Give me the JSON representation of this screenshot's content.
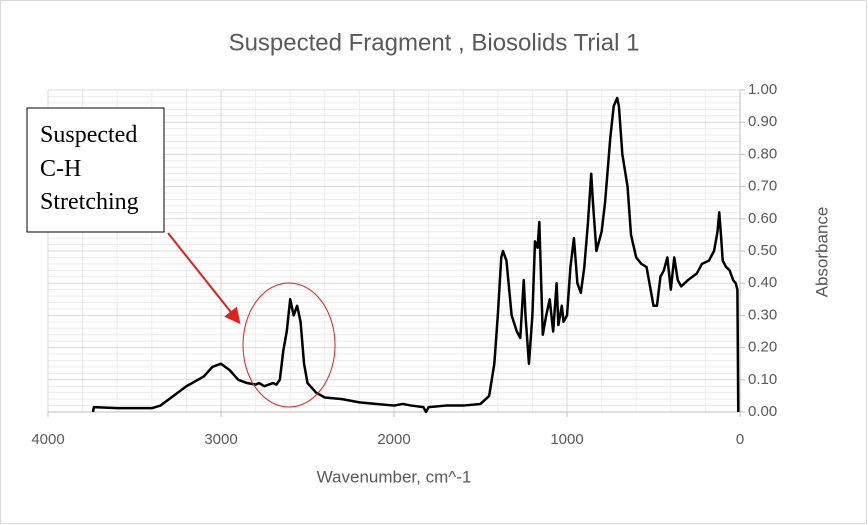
{
  "chart_data": {
    "type": "line",
    "title": "Suspected Fragment , Biosolids Trial 1",
    "x_label": "Wavenumber, cm^-1",
    "y_label": "Absorbance",
    "annotation": [
      "Suspected",
      "C-H",
      "Stretching"
    ],
    "color": "#000000",
    "x_reversed": true,
    "grid": true,
    "xlim": [
      4000,
      0
    ],
    "xticks": [
      4000,
      3000,
      2000,
      1000,
      0
    ],
    "ylim": [
      0,
      1
    ],
    "yticks": [
      {
        "value": 0,
        "label": "0.00"
      },
      {
        "value": 0.1,
        "label": "0.10"
      },
      {
        "value": 0.2,
        "label": "0.20"
      },
      {
        "value": 0.3,
        "label": "0.30"
      },
      {
        "value": 0.4,
        "label": "0.40"
      },
      {
        "value": 0.5,
        "label": "0.50"
      },
      {
        "value": 0.6,
        "label": "0.60"
      },
      {
        "value": 0.7,
        "label": "0.70"
      },
      {
        "value": 0.8,
        "label": "0.80"
      },
      {
        "value": 0.9,
        "label": "0.90"
      },
      {
        "value": 1,
        "label": "1.00"
      }
    ],
    "x": [
      3740,
      3735,
      3600,
      3400,
      3350,
      3300,
      3200,
      3100,
      3050,
      3000,
      2950,
      2900,
      2850,
      2800,
      2780,
      2750,
      2700,
      2680,
      2660,
      2640,
      2620,
      2600,
      2580,
      2560,
      2540,
      2520,
      2500,
      2450,
      2400,
      2300,
      2200,
      2100,
      2000,
      1950,
      1900,
      1830,
      1815,
      1800,
      1700,
      1600,
      1500,
      1450,
      1420,
      1400,
      1380,
      1370,
      1350,
      1320,
      1290,
      1270,
      1250,
      1240,
      1220,
      1200,
      1185,
      1170,
      1160,
      1140,
      1120,
      1100,
      1080,
      1060,
      1050,
      1030,
      1020,
      1000,
      980,
      960,
      940,
      920,
      900,
      880,
      860,
      850,
      830,
      800,
      780,
      750,
      730,
      710,
      700,
      680,
      650,
      630,
      600,
      570,
      540,
      500,
      480,
      460,
      440,
      420,
      400,
      380,
      360,
      340,
      320,
      300,
      250,
      220,
      180,
      150,
      130,
      120,
      110,
      100,
      80,
      60,
      40,
      25,
      15,
      10
    ],
    "values": [
      0,
      0.015,
      0.012,
      0.012,
      0.02,
      0.04,
      0.08,
      0.11,
      0.14,
      0.15,
      0.13,
      0.1,
      0.09,
      0.085,
      0.09,
      0.08,
      0.09,
      0.085,
      0.1,
      0.19,
      0.25,
      0.35,
      0.3,
      0.33,
      0.28,
      0.15,
      0.09,
      0.06,
      0.045,
      0.04,
      0.03,
      0.025,
      0.02,
      0.025,
      0.02,
      0.015,
      0,
      0.015,
      0.02,
      0.02,
      0.025,
      0.05,
      0.15,
      0.3,
      0.48,
      0.5,
      0.47,
      0.3,
      0.25,
      0.23,
      0.41,
      0.3,
      0.15,
      0.3,
      0.53,
      0.51,
      0.59,
      0.24,
      0.3,
      0.35,
      0.25,
      0.4,
      0.27,
      0.33,
      0.28,
      0.3,
      0.45,
      0.54,
      0.4,
      0.37,
      0.45,
      0.58,
      0.74,
      0.65,
      0.5,
      0.56,
      0.65,
      0.85,
      0.95,
      0.975,
      0.95,
      0.8,
      0.7,
      0.55,
      0.48,
      0.46,
      0.45,
      0.33,
      0.33,
      0.42,
      0.44,
      0.48,
      0.38,
      0.48,
      0.41,
      0.39,
      0.4,
      0.41,
      0.43,
      0.46,
      0.47,
      0.5,
      0.56,
      0.62,
      0.55,
      0.47,
      0.45,
      0.44,
      0.41,
      0.4,
      0.38,
      0
    ]
  }
}
